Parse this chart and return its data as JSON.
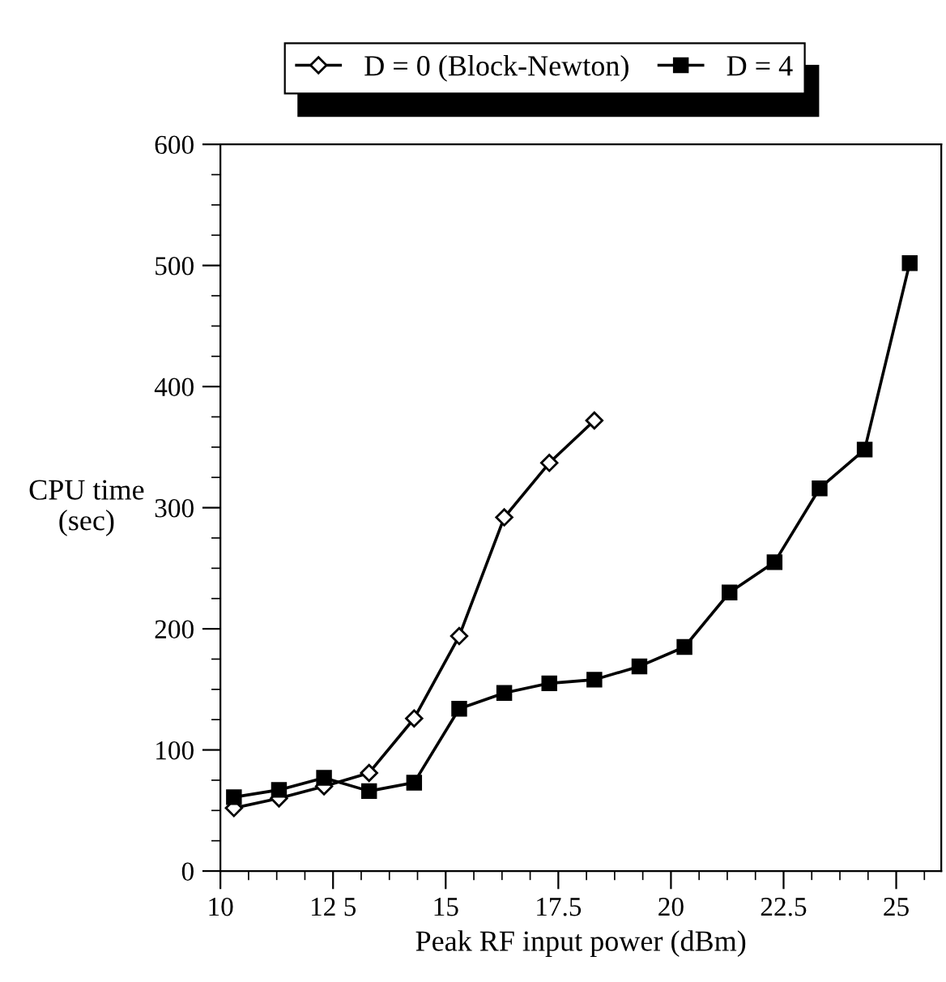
{
  "chart_data": {
    "type": "line",
    "xlabel": "Peak RF input power (dBm)",
    "ylabel": "CPU time\n(sec)",
    "xlim": [
      10,
      26
    ],
    "xticks": [
      10,
      {
        "value": 12.5,
        "label": "12 5"
      },
      15,
      17.5,
      20,
      22.5,
      25
    ],
    "ylim": [
      0,
      600
    ],
    "yticks": [
      0,
      100,
      200,
      300,
      400,
      500,
      600
    ],
    "grid": false,
    "legend": "top",
    "line_style": "solid",
    "series": [
      {
        "name": "D = 0 (Block-Newton)",
        "color": "#000000",
        "marker": "diamond",
        "x": [
          10.3,
          11.3,
          12.3,
          13.3,
          14.3,
          15.3,
          16.3,
          17.3,
          18.3
        ],
        "values": [
          52,
          60,
          70,
          81,
          126,
          194,
          292,
          337,
          372
        ]
      },
      {
        "name": "D = 4",
        "color": "#000000",
        "marker": "square",
        "x": [
          10.3,
          11.3,
          12.3,
          13.3,
          14.3,
          15.3,
          16.3,
          17.3,
          18.3,
          19.3,
          20.3,
          21.3,
          22.3,
          23.3,
          24.3,
          25.3
        ],
        "values": [
          61,
          67,
          77,
          66,
          73,
          134,
          147,
          155,
          158,
          169,
          185,
          230,
          255,
          316,
          348,
          502
        ]
      }
    ]
  }
}
